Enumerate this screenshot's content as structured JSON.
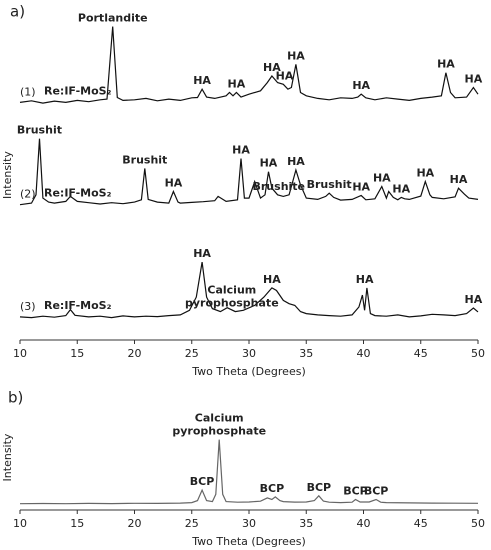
{
  "chart_data": [
    {
      "type": "line",
      "label": "a)",
      "x_label": "Two Theta (Degrees)",
      "y_label": "Intensity",
      "xlim": [
        10,
        50
      ],
      "xticks": [
        10,
        15,
        20,
        25,
        30,
        35,
        40,
        45,
        50
      ],
      "ylim": [
        0,
        100
      ],
      "series": [
        {
          "label": "(1)",
          "name": "Re:IF-MoS₂",
          "color": "#111111",
          "x": [
            10,
            11,
            12,
            13,
            14,
            15,
            16,
            17,
            17.6,
            18.1,
            18.5,
            19,
            20,
            21,
            22,
            23,
            24,
            25,
            25.5,
            25.9,
            26.3,
            27,
            28,
            28.3,
            28.6,
            28.9,
            29.3,
            30,
            31,
            31.6,
            32,
            32.5,
            33,
            33.4,
            33.7,
            34.1,
            34.5,
            35,
            36,
            37,
            38,
            39,
            39.5,
            39.8,
            40.2,
            41,
            42,
            43,
            44,
            45,
            46,
            46.8,
            47.2,
            47.6,
            48,
            49,
            49.6,
            50
          ],
          "values": [
            72,
            72.5,
            71.8,
            72.4,
            72,
            72.6,
            72.2,
            72.8,
            73,
            95,
            73.5,
            72.6,
            72.8,
            73.2,
            72.5,
            73,
            72.6,
            73.4,
            73.5,
            76,
            73.6,
            73.2,
            74,
            75,
            74,
            75,
            73.6,
            74.5,
            75.5,
            78,
            80,
            78,
            77.5,
            76,
            76.5,
            83.5,
            75,
            74,
            73.2,
            72.8,
            73.4,
            73.2,
            73.6,
            74.5,
            73.4,
            72.8,
            73.4,
            73,
            72.6,
            73.2,
            73.6,
            74,
            81,
            75,
            73.4,
            73.6,
            76.5,
            74.5
          ],
          "annotations": [
            {
              "text": "Portlandite",
              "x": 18.1
            },
            {
              "text": "HA",
              "x": 25.9
            },
            {
              "text": "HA",
              "x": 28.9
            },
            {
              "text": "HA",
              "x": 32
            },
            {
              "text": "HA",
              "x": 33.1
            },
            {
              "text": "HA",
              "x": 34.1
            },
            {
              "text": "HA",
              "x": 39.8
            },
            {
              "text": "HA",
              "x": 47.2
            },
            {
              "text": "HA",
              "x": 49.6
            }
          ]
        },
        {
          "label": "(2)",
          "name": "Re:IF-MoS₂",
          "color": "#111111",
          "x": [
            10,
            11,
            11.4,
            11.7,
            12,
            12.5,
            13,
            14,
            14.4,
            15,
            16,
            17,
            18,
            19,
            20,
            20.6,
            20.9,
            21.2,
            22,
            23,
            23.4,
            23.8,
            24,
            25,
            26,
            27,
            27.3,
            28,
            29,
            29.3,
            29.6,
            30,
            30.5,
            31,
            31.4,
            31.7,
            32,
            32.5,
            33,
            33.5,
            34.1,
            34.5,
            35,
            36,
            36.7,
            37,
            37.4,
            38,
            39,
            39.8,
            40.2,
            41,
            41.6,
            42,
            42.2,
            42.6,
            43,
            43.3,
            43.6,
            44,
            45,
            45.4,
            45.8,
            46,
            47,
            48,
            48.3,
            48.8,
            49.2,
            50
          ],
          "values": [
            41,
            41.5,
            44,
            61,
            43,
            41.8,
            41.5,
            42,
            43.5,
            42,
            41.6,
            41.2,
            41.6,
            41.3,
            41.8,
            42.5,
            52,
            42.6,
            41.8,
            41.5,
            45,
            41.8,
            41.5,
            41.7,
            41.9,
            42.2,
            43.5,
            42,
            42.5,
            55,
            43,
            43,
            48,
            43,
            44,
            51,
            46,
            44,
            43.5,
            44,
            51.5,
            47,
            43,
            42.6,
            43.5,
            44.5,
            43.2,
            42.4,
            42.6,
            43.8,
            42.5,
            42.8,
            46.5,
            43,
            45,
            43.2,
            42.5,
            43.2,
            42.8,
            42.6,
            43.6,
            48,
            44,
            43.2,
            42.8,
            43.4,
            46,
            44.2,
            43,
            42.6
          ],
          "annotations": [
            {
              "text": "Brushit",
              "x": 11.7
            },
            {
              "text": "Brushit",
              "x": 20.9
            },
            {
              "text": "HA",
              "x": 23.4
            },
            {
              "text": "HA",
              "x": 29.3
            },
            {
              "text": "HA",
              "x": 31.7
            },
            {
              "text": "Brushite",
              "x": 32.6
            },
            {
              "text": "HA",
              "x": 34.1
            },
            {
              "text": "Brushit",
              "x": 37
            },
            {
              "text": "HA",
              "x": 39.8
            },
            {
              "text": "HA",
              "x": 41.6
            },
            {
              "text": "HA",
              "x": 43.3
            },
            {
              "text": "HA",
              "x": 45.4
            },
            {
              "text": "HA",
              "x": 48.3
            }
          ]
        },
        {
          "label": "(3)",
          "name": "Re:IF-MoS₂",
          "color": "#111111",
          "x": [
            10,
            11,
            12,
            13,
            14,
            14.4,
            14.8,
            16,
            17,
            18,
            19,
            20,
            21,
            22,
            23,
            24,
            24.8,
            25.4,
            25.9,
            26.3,
            26.8,
            27.5,
            28.1,
            28.8,
            29.5,
            30.5,
            31.3,
            32,
            32.4,
            33,
            33.5,
            34,
            34.5,
            35,
            36,
            37,
            38,
            39,
            39.6,
            39.9,
            40.1,
            40.3,
            40.6,
            41,
            42,
            43,
            44,
            45,
            46,
            47,
            48,
            49,
            49.6,
            50
          ],
          "values": [
            7,
            6.8,
            7.2,
            6.9,
            7.4,
            9.2,
            7.5,
            7,
            7.2,
            6.8,
            7.3,
            7,
            7.2,
            7.1,
            7.4,
            7.6,
            9,
            13,
            23.6,
            13,
            9.5,
            8.6,
            9.8,
            8.6,
            9,
            10.5,
            13,
            15.8,
            15,
            12,
            11,
            10.5,
            8.6,
            8,
            7.6,
            7.4,
            7.2,
            7.6,
            10,
            13.6,
            9,
            15.8,
            8,
            7.4,
            7.2,
            7.6,
            7,
            7.3,
            7.8,
            7.6,
            7.4,
            8,
            9.7,
            8.5
          ],
          "annotations": [
            {
              "text": "HA",
              "x": 25.9
            },
            {
              "text": [
                "Calcium",
                "pyrophosphate"
              ],
              "x": 28.5
            },
            {
              "text": "HA",
              "x": 32
            },
            {
              "text": "HA",
              "x": 40.1
            },
            {
              "text": "HA",
              "x": 49.6
            }
          ]
        }
      ]
    },
    {
      "type": "line",
      "label": "b)",
      "x_label": "Two Theta (Degrees)",
      "y_label": "Intensity",
      "xlim": [
        10,
        50
      ],
      "xticks": [
        10,
        15,
        20,
        25,
        30,
        35,
        40,
        45,
        50
      ],
      "ylim": [
        0,
        100
      ],
      "series": [
        {
          "color": "#666666",
          "x": [
            10,
            12,
            14,
            16,
            18,
            20,
            22,
            24,
            25,
            25.5,
            25.9,
            26.3,
            26.8,
            27.1,
            27.4,
            27.7,
            28,
            29,
            30,
            31,
            31.6,
            32,
            32.3,
            32.7,
            33,
            34,
            35,
            35.7,
            36.1,
            36.5,
            37,
            38,
            39,
            39.3,
            39.7,
            40.5,
            41.1,
            41.5,
            42,
            44,
            46,
            48,
            50
          ],
          "values": [
            6,
            6.2,
            6,
            6.3,
            6.1,
            6.4,
            6.3,
            6.6,
            7,
            9,
            19,
            9,
            8,
            15,
            67,
            15,
            8,
            7.4,
            7.6,
            8.4,
            11.5,
            10,
            12.5,
            9,
            8,
            7.5,
            7.6,
            9,
            13.5,
            8.5,
            7.4,
            7,
            7.4,
            10,
            7.6,
            7.6,
            10,
            7.4,
            7,
            6.8,
            6.6,
            6.5,
            6.4
          ],
          "annotations": [
            {
              "text": "BCP",
              "x": 25.9
            },
            {
              "text": [
                "Calcium",
                "pyrophosphate"
              ],
              "x": 27.4
            },
            {
              "text": "BCP",
              "x": 32
            },
            {
              "text": "BCP",
              "x": 36.1
            },
            {
              "text": "BCP",
              "x": 39.3
            },
            {
              "text": "BCP",
              "x": 41.1
            }
          ]
        }
      ]
    }
  ]
}
